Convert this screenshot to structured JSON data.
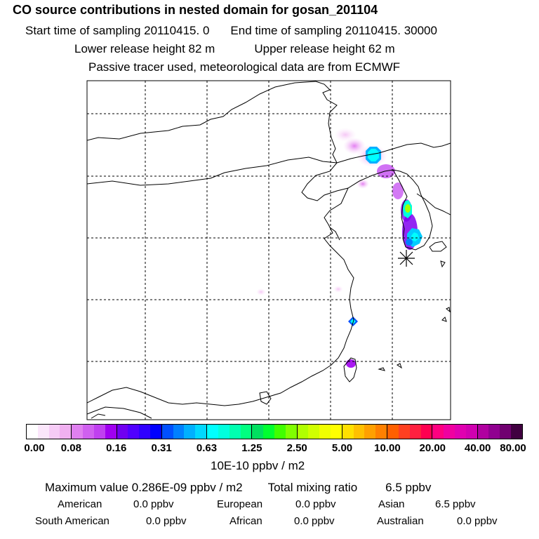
{
  "header": {
    "title": "CO  source contributions in nested domain for gosan_201104",
    "start_label": "Start time of sampling 20110415.     0",
    "end_label": "End time of sampling 20110415. 30000",
    "lower_label": "Lower release height   82 m",
    "upper_label": "Upper release height   62 m",
    "tracer_note": "Passive tracer used, meteorological data are from ECMWF"
  },
  "colorbar": {
    "tick_labels": [
      "0.00",
      "0.08",
      "0.16",
      "0.31",
      "0.63",
      "1.25",
      "2.50",
      "5.00",
      "10.00",
      "20.00",
      "40.00",
      "80.00"
    ],
    "units": "10E-10 ppbv / m2",
    "colors": [
      [
        "#ffffff",
        "#fbe6fb",
        "#f6ccf6",
        "#f0b0f0"
      ],
      [
        "#e080f0",
        "#d060f0",
        "#c040f0",
        "#a000f0"
      ],
      [
        "#7000f0",
        "#5000ff",
        "#3000ff",
        "#0000ff"
      ],
      [
        "#0050ff",
        "#0080ff",
        "#00b0ff",
        "#00d8ff"
      ],
      [
        "#00ffff",
        "#00ffdd",
        "#00ffb0",
        "#00ff80"
      ],
      [
        "#00e060",
        "#00ff30",
        "#40ff00",
        "#80ff00"
      ],
      [
        "#b0ff00",
        "#d0ff00",
        "#f0ff00",
        "#ffff00"
      ],
      [
        "#ffe000",
        "#ffc000",
        "#ffa000",
        "#ff8000"
      ],
      [
        "#ff6000",
        "#ff4020",
        "#ff2040",
        "#ff0050"
      ],
      [
        "#ff0080",
        "#f000a0",
        "#e000b0",
        "#d000b0"
      ],
      [
        "#b000a0",
        "#900090",
        "#700070",
        "#400040"
      ]
    ]
  },
  "summary": {
    "max_value_label": "Maximum value  0.286E-09 ppbv / m2",
    "total_label": "Total mixing ratio",
    "total_value": "6.5 ppbv",
    "american_label": "American",
    "american_value": "0.0 ppbv",
    "european_label": "European",
    "european_value": "0.0 ppbv",
    "asian_label": "Asian",
    "asian_value": "6.5 ppbv",
    "south_american_label": "South American",
    "south_american_value": "0.0 ppbv",
    "african_label": "African",
    "african_value": "0.0 ppbv",
    "australian_label": "Australian",
    "australian_value": "0.0 ppbv"
  },
  "map": {
    "receptor_marker": "star-asterisk",
    "grid_style": "dashed"
  }
}
